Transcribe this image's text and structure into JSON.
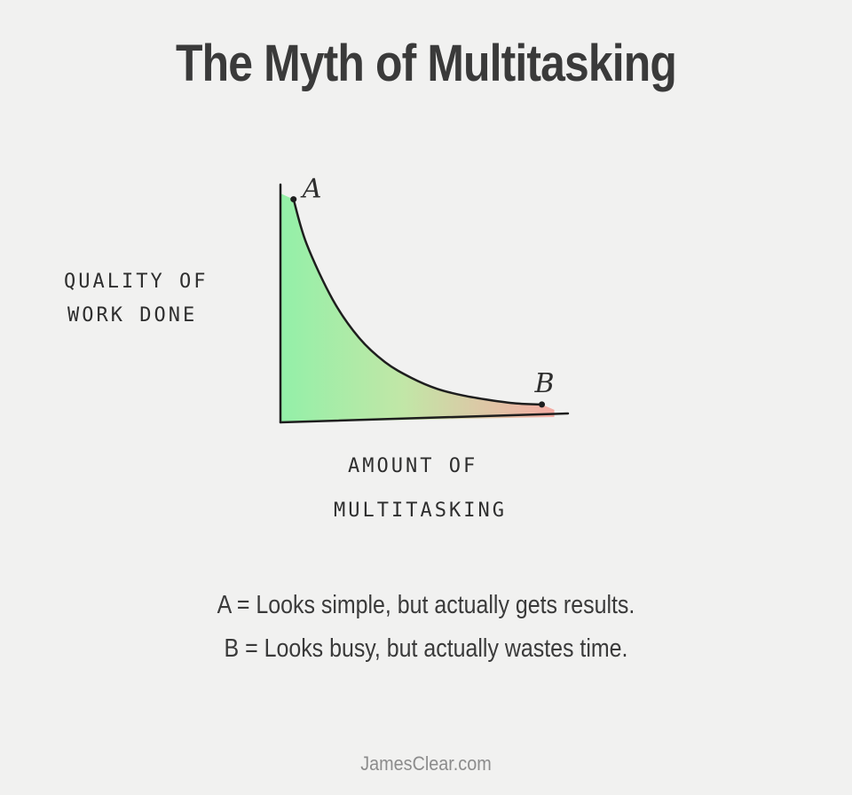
{
  "title": "The Myth of Multitasking",
  "chart_data": {
    "type": "area",
    "title": "The Myth of Multitasking",
    "ylabel_lines": [
      "QUALITY OF",
      "WORK DONE"
    ],
    "xlabel_lines": [
      "AMOUNT OF",
      "MULTITASKING"
    ],
    "x": [
      0.05,
      0.1,
      0.2,
      0.3,
      0.4,
      0.5,
      0.6,
      0.7,
      0.8,
      0.9,
      1.0
    ],
    "y": [
      1.0,
      0.8,
      0.55,
      0.38,
      0.27,
      0.2,
      0.15,
      0.12,
      0.1,
      0.085,
      0.08
    ],
    "points": [
      {
        "label": "A",
        "x": 0.05,
        "y": 1.0
      },
      {
        "label": "B",
        "x": 1.0,
        "y": 0.08
      }
    ],
    "xlim": [
      0,
      1.1
    ],
    "ylim": [
      0,
      1.05
    ],
    "fill_gradient": [
      "#8ef0a4",
      "#bfe6a3",
      "#f5a8a0"
    ],
    "grid": false
  },
  "captions": {
    "a": "A = Looks simple, but actually gets results.",
    "b": "B = Looks busy, but actually wastes time."
  },
  "credit": "JamesClear.com"
}
